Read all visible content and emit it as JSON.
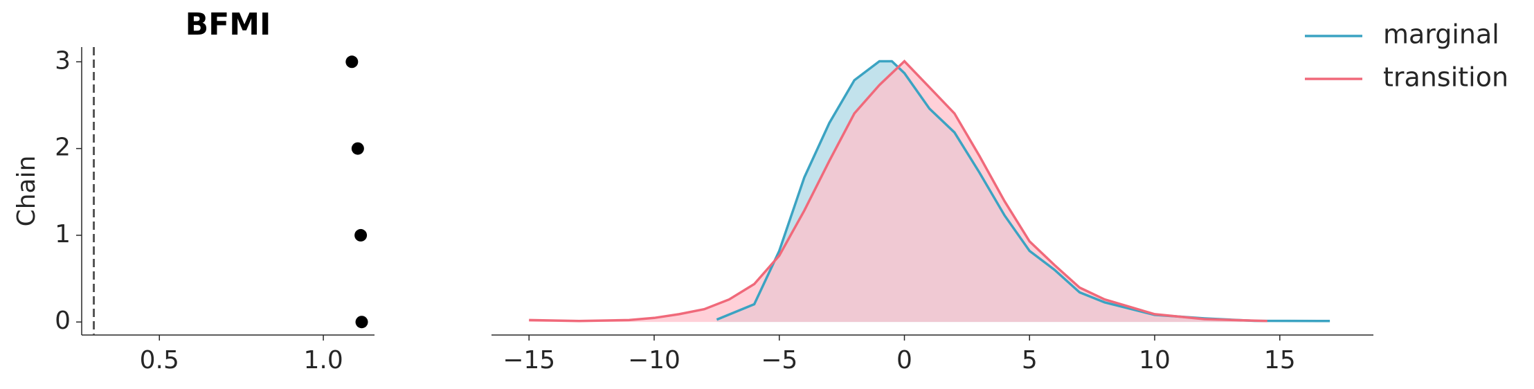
{
  "chart_data": [
    {
      "type": "scatter",
      "title": "BFMI",
      "ylabel": "Chain",
      "x": [
        1.117,
        1.114,
        1.105,
        1.087
      ],
      "values": [
        0,
        1,
        2,
        3
      ],
      "color": "#000000",
      "reference_line": 0.3,
      "reference_color": "#555555",
      "xlim": [
        0.263,
        1.156
      ],
      "ylim": [
        -0.15,
        3.17
      ],
      "xticks": [
        0.5,
        {
          "value": 1,
          "label": "1.0"
        }
      ],
      "yticks": [
        0,
        1,
        2,
        3
      ],
      "grid": false
    },
    {
      "type": "line",
      "legend": "upper right",
      "grid": false,
      "xlim": [
        -16.5,
        18.74
      ],
      "ylim": [
        -0.0055,
        0.116
      ],
      "xticks": [
        {
          "value": -15,
          "label": "−15"
        },
        {
          "value": -10,
          "label": "−10"
        },
        {
          "value": -5,
          "label": "−5"
        },
        0,
        5,
        10,
        15
      ],
      "series": [
        {
          "name": "marginal",
          "color": "#3ba3c2",
          "fill": "#add8e6",
          "x": [
            -7.5,
            -6,
            -5,
            -4,
            -3,
            -2,
            -1,
            -0.5,
            0,
            1,
            2,
            3,
            4,
            5,
            6,
            7,
            8,
            10,
            12,
            14,
            17
          ],
          "values": [
            0.001,
            0.0075,
            0.03,
            0.061,
            0.084,
            0.102,
            0.11,
            0.11,
            0.105,
            0.09,
            0.08,
            0.063,
            0.045,
            0.03,
            0.022,
            0.0125,
            0.0083,
            0.003,
            0.0015,
            0.0005,
            0.0004
          ]
        },
        {
          "name": "transition",
          "color": "#f0697a",
          "fill": "#ffc0cb",
          "x": [
            -15,
            -13,
            -11,
            -10,
            -9,
            -8,
            -7,
            -6,
            -5,
            -4,
            -3,
            -2,
            -1,
            0,
            1,
            2,
            3,
            4,
            5,
            6,
            7,
            8,
            10,
            12,
            14.5
          ],
          "values": [
            0.0008,
            0.0004,
            0.0008,
            0.0017,
            0.0033,
            0.0054,
            0.0095,
            0.016,
            0.028,
            0.047,
            0.068,
            0.088,
            0.1,
            0.11,
            0.099,
            0.088,
            0.07,
            0.051,
            0.034,
            0.024,
            0.0145,
            0.0095,
            0.0033,
            0.0012,
            0.0004
          ]
        }
      ]
    }
  ]
}
